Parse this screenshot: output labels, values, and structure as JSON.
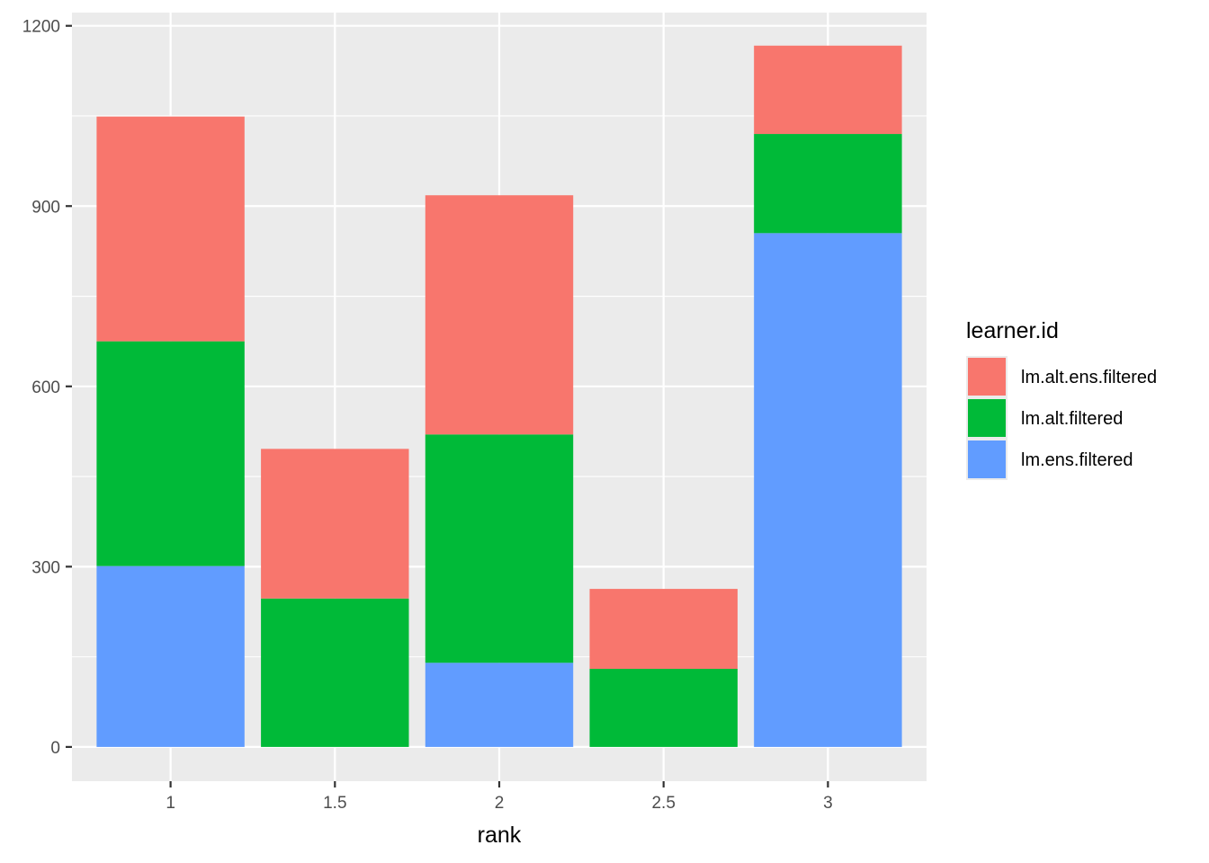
{
  "chart_data": {
    "type": "bar",
    "stacked": true,
    "title": "",
    "xlabel": "rank",
    "ylabel": "",
    "categories": [
      "1",
      "1.5",
      "2",
      "2.5",
      "3"
    ],
    "series": [
      {
        "name": "lm.ens.filtered",
        "values": [
          301,
          0,
          140,
          0,
          855
        ],
        "color": "#619CFF"
      },
      {
        "name": "lm.alt.filtered",
        "values": [
          374,
          247,
          380,
          130,
          165
        ],
        "color": "#00BA38"
      },
      {
        "name": "lm.alt.ens.filtered",
        "values": [
          374,
          249,
          398,
          133,
          147
        ],
        "color": "#F8766D"
      }
    ],
    "ylim": [
      -57,
      1222
    ],
    "yticks": [
      0,
      300,
      600,
      900,
      1200
    ],
    "ytick_labels": [
      "0",
      "300",
      "600",
      "900",
      "1200"
    ],
    "grid": true,
    "panel_background": "#EBEBEB",
    "legend": {
      "title": "learner.id",
      "placement": "right",
      "entries": [
        "lm.alt.ens.filtered",
        "lm.alt.filtered",
        "lm.ens.filtered"
      ]
    }
  }
}
